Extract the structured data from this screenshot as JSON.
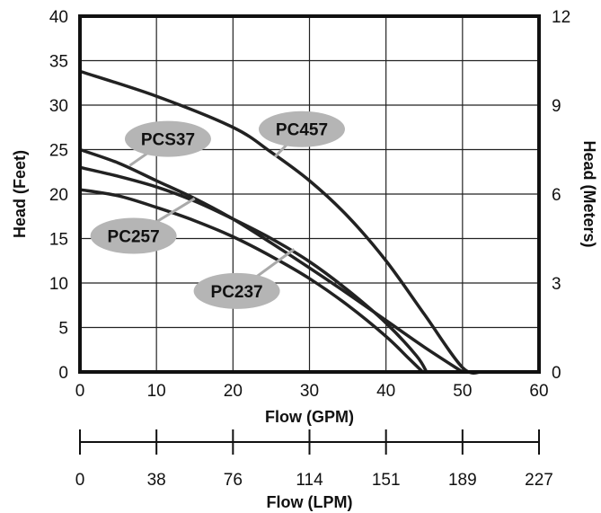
{
  "chart_data": {
    "type": "line",
    "xlabel": "Flow (GPM)",
    "ylabel": "Head (Feet)",
    "y2label": "Head (Meters)",
    "x2label": "Flow (LPM)",
    "xlim": [
      0,
      60
    ],
    "ylim": [
      0,
      40
    ],
    "y2lim": [
      0,
      12
    ],
    "grid": true,
    "x_ticks": [
      "0",
      "10",
      "20",
      "30",
      "40",
      "50",
      "60"
    ],
    "y_ticks": [
      "0",
      "5",
      "10",
      "15",
      "20",
      "25",
      "30",
      "35",
      "40"
    ],
    "y2_ticks": [
      "0",
      "3",
      "6",
      "9",
      "12"
    ],
    "lpm_ticks": [
      "0",
      "38",
      "76",
      "114",
      "151",
      "189",
      "227"
    ],
    "series": [
      {
        "name": "PC457",
        "x": [
          0,
          10,
          20,
          25,
          30,
          35,
          40,
          45,
          50,
          52.5
        ],
        "y": [
          33.8,
          31,
          27.5,
          24.7,
          21.5,
          17.5,
          12.5,
          6.5,
          0.5,
          0
        ]
      },
      {
        "name": "PCS37",
        "x": [
          0,
          5,
          10,
          15,
          20,
          25,
          30,
          35,
          40,
          45,
          50
        ],
        "y": [
          25,
          23.5,
          21.5,
          19.5,
          17.2,
          14.5,
          11.7,
          8.8,
          5.8,
          2.8,
          0
        ]
      },
      {
        "name": "PC257",
        "x": [
          0,
          5,
          10,
          15,
          20,
          25,
          30,
          35,
          40,
          44,
          45.3
        ],
        "y": [
          23,
          22,
          20.8,
          19.2,
          17.2,
          15,
          12.4,
          9.2,
          5.5,
          1.8,
          0
        ]
      },
      {
        "name": "PC237",
        "x": [
          0,
          5,
          10,
          15,
          20,
          25,
          30,
          35,
          40,
          43,
          44.8
        ],
        "y": [
          20.5,
          19.8,
          18.5,
          17,
          15.2,
          13,
          10.5,
          7.5,
          4,
          1.5,
          0
        ]
      }
    ],
    "labels": [
      {
        "text": "PC457",
        "x": 29,
        "y_label": 27.3,
        "x_pointer": 25.5,
        "y_pointer": 24.2
      },
      {
        "text": "PCS37",
        "x": 11.5,
        "y_label": 26.2,
        "x_pointer": 6.5,
        "y_pointer": 23.2
      },
      {
        "text": "PC257",
        "x": 7,
        "y_label": 15.3,
        "x_pointer": 15,
        "y_pointer": 19.5
      },
      {
        "text": "PC237",
        "x": 20.5,
        "y_label": 9.1,
        "x_pointer": 28,
        "y_pointer": 13.8
      }
    ]
  }
}
